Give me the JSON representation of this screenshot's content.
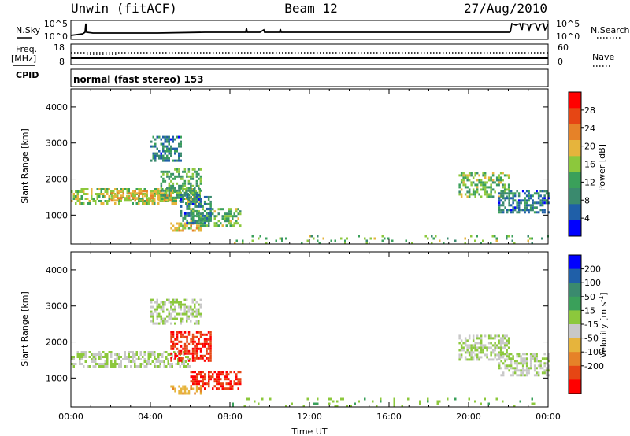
{
  "header": {
    "station": "Unwin (fitACF)",
    "beam": "Beam 12",
    "date": "27/Aug/2010"
  },
  "top_panels": {
    "nsky_label": "N.Sky",
    "nsky_ticks": [
      "10^5",
      "10^0"
    ],
    "nsearch_label": "N.Search",
    "nsearch_ticks": [
      "10^5",
      "10^0"
    ],
    "freq_label_1": "Freq.",
    "freq_label_2": "[MHz]",
    "freq_ticks": [
      "18",
      "8"
    ],
    "nave_label": "Nave",
    "nave_ticks": [
      "60",
      "0"
    ],
    "cpid_label": "CPID",
    "cpid_text": "normal (fast stereo) 153"
  },
  "colors": {
    "power": [
      "#0000ff",
      "#1f5fa8",
      "#3a8a6e",
      "#3aa05a",
      "#8cc83c",
      "#e6b43c",
      "#e68228",
      "#e64614",
      "#ff0000"
    ],
    "velocity": [
      "#0000ff",
      "#1f5fa8",
      "#3a8a6e",
      "#3aa05a",
      "#8cc83c",
      "#c8c8c8",
      "#e6b43c",
      "#e68228",
      "#e64614",
      "#ff0000"
    ]
  },
  "chart_data": [
    {
      "type": "heatmap",
      "panel": "power",
      "ylabel": "Slant Range [km]",
      "xlim": [
        0,
        24
      ],
      "ylim": [
        200,
        4500
      ],
      "yticks": [
        "1000",
        "2000",
        "3000",
        "4000"
      ],
      "colorbar_label": "Power [dB]",
      "colorbar_ticks": [
        "4",
        "8",
        "12",
        "16",
        "20",
        "24",
        "28"
      ],
      "colorbar_range": [
        0,
        32
      ],
      "regions": [
        {
          "x": [
            0.0,
            6.5
          ],
          "y": [
            1350,
            1750
          ],
          "value": 16
        },
        {
          "x": [
            2.0,
            5.0
          ],
          "y": [
            1400,
            1700
          ],
          "value": 20
        },
        {
          "x": [
            4.5,
            6.5
          ],
          "y": [
            1500,
            2300
          ],
          "value": 12
        },
        {
          "x": [
            4.0,
            5.5
          ],
          "y": [
            2500,
            3200
          ],
          "value": 8
        },
        {
          "x": [
            6.0,
            8.5
          ],
          "y": [
            700,
            1200
          ],
          "value": 14
        },
        {
          "x": [
            5.0,
            6.5
          ],
          "y": [
            550,
            800
          ],
          "value": 18
        },
        {
          "x": [
            5.5,
            7.0
          ],
          "y": [
            800,
            1600
          ],
          "value": 8
        },
        {
          "x": [
            19.5,
            22.0
          ],
          "y": [
            1500,
            2200
          ],
          "value": 14
        },
        {
          "x": [
            21.5,
            24.0
          ],
          "y": [
            1100,
            1700
          ],
          "value": 8
        },
        {
          "x": [
            8.0,
            24.0
          ],
          "y": [
            200,
            450
          ],
          "value": 14
        }
      ]
    },
    {
      "type": "heatmap",
      "panel": "velocity",
      "ylabel": "Slant Range [km]",
      "xlabel": "Time UT",
      "xlim": [
        0,
        24
      ],
      "ylim": [
        200,
        4500
      ],
      "xticks": [
        "00:00",
        "04:00",
        "08:00",
        "12:00",
        "16:00",
        "20:00",
        "00:00"
      ],
      "yticks": [
        "1000",
        "2000",
        "3000",
        "4000"
      ],
      "colorbar_label": "Velocity [m s^-1]",
      "colorbar_ticks": [
        "200",
        "100",
        "50",
        "15",
        "-15",
        "-50",
        "-100",
        "-200"
      ],
      "colorbar_range": [
        -250,
        250
      ],
      "regions": [
        {
          "x": [
            0.0,
            6.0
          ],
          "y": [
            1350,
            1750
          ],
          "value": 0
        },
        {
          "x": [
            4.0,
            6.5
          ],
          "y": [
            2500,
            3200
          ],
          "value": 0
        },
        {
          "x": [
            5.0,
            7.0
          ],
          "y": [
            1500,
            2300
          ],
          "value": -200
        },
        {
          "x": [
            6.0,
            8.5
          ],
          "y": [
            700,
            1200
          ],
          "value": -200
        },
        {
          "x": [
            5.0,
            6.5
          ],
          "y": [
            550,
            800
          ],
          "value": -80
        },
        {
          "x": [
            19.5,
            22.0
          ],
          "y": [
            1500,
            2200
          ],
          "value": 0
        },
        {
          "x": [
            21.5,
            24.0
          ],
          "y": [
            1100,
            1700
          ],
          "value": 0
        },
        {
          "x": [
            8.0,
            24.0
          ],
          "y": [
            200,
            450
          ],
          "value": 30
        }
      ]
    }
  ]
}
